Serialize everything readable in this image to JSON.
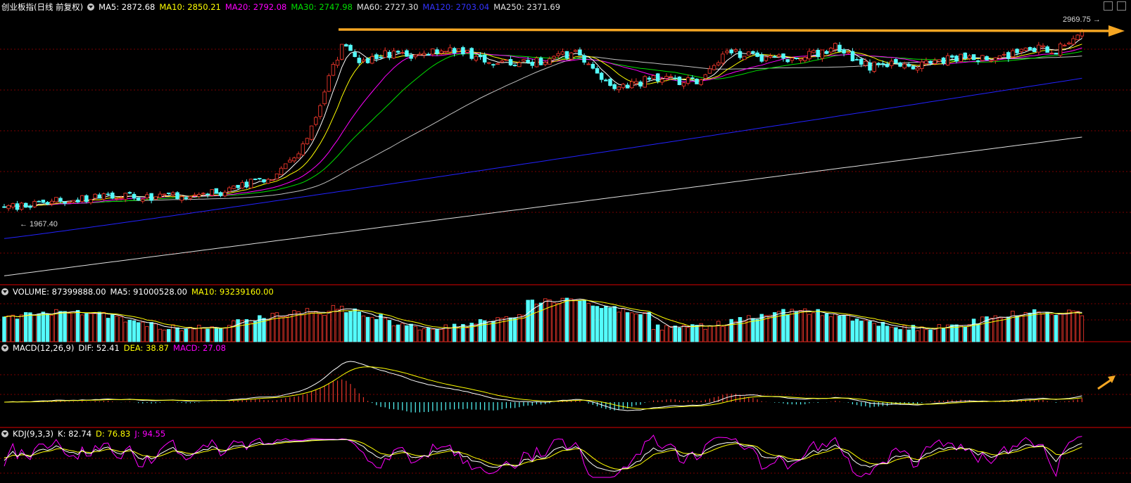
{
  "colors": {
    "up": "#e8352a",
    "down": "#54fcfc",
    "ma5": "#ffffff",
    "ma10": "#ffff00",
    "ma20": "#ff00ff",
    "ma30": "#00e000",
    "ma60": "#c0c0c0",
    "ma120": "#2222ff",
    "ma250": "#e0e0e0",
    "arrow": "#f5a623"
  },
  "main": {
    "title": "创业板指(日线 前复权)",
    "ma5": "MA5: 2872.68",
    "ma10": "MA10: 2850.21",
    "ma20": "MA20: 2792.08",
    "ma30": "MA30: 2747.98",
    "ma60": "MA60: 2727.30",
    "ma120": "MA120: 2703.04",
    "ma250": "MA250: 2371.69",
    "high_label": "2969.75",
    "low_label": "1967.40"
  },
  "volume": {
    "title": "VOLUME: 87399888.00",
    "ma5": "MA5: 91000528.00",
    "ma10": "MA10: 93239160.00"
  },
  "macd": {
    "title": "MACD(12,26,9)",
    "dif": "DIF: 52.41",
    "dea": "DEA: 38.87",
    "macd": "MACD: 27.08"
  },
  "kdj": {
    "title": "KDJ(9,3,3)",
    "k": "K: 82.74",
    "d": "D: 76.83",
    "j": "J: 94.55"
  },
  "chart_data": {
    "type": "candlestick",
    "title": "创业板指(日线 前复权)",
    "period": "daily",
    "bars": 250,
    "close_path_control_points": [
      {
        "bar": 0,
        "close": 1975
      },
      {
        "bar": 12,
        "close": 2015
      },
      {
        "bar": 25,
        "close": 2040
      },
      {
        "bar": 35,
        "close": 2030
      },
      {
        "bar": 50,
        "close": 2060
      },
      {
        "bar": 62,
        "close": 2150
      },
      {
        "bar": 70,
        "close": 2350
      },
      {
        "bar": 78,
        "close": 2900
      },
      {
        "bar": 82,
        "close": 2780
      },
      {
        "bar": 88,
        "close": 2850
      },
      {
        "bar": 95,
        "close": 2820
      },
      {
        "bar": 103,
        "close": 2880
      },
      {
        "bar": 112,
        "close": 2780
      },
      {
        "bar": 122,
        "close": 2790
      },
      {
        "bar": 132,
        "close": 2850
      },
      {
        "bar": 140,
        "close": 2640
      },
      {
        "bar": 150,
        "close": 2700
      },
      {
        "bar": 160,
        "close": 2680
      },
      {
        "bar": 168,
        "close": 2860
      },
      {
        "bar": 176,
        "close": 2800
      },
      {
        "bar": 185,
        "close": 2830
      },
      {
        "bar": 192,
        "close": 2875
      },
      {
        "bar": 200,
        "close": 2770
      },
      {
        "bar": 212,
        "close": 2780
      },
      {
        "bar": 220,
        "close": 2820
      },
      {
        "bar": 228,
        "close": 2810
      },
      {
        "bar": 236,
        "close": 2870
      },
      {
        "bar": 243,
        "close": 2860
      },
      {
        "bar": 249,
        "close": 2965
      }
    ],
    "price_high": 2969.75,
    "price_low": 1967.4,
    "last_values": {
      "MA5": 2872.68,
      "MA10": 2850.21,
      "MA20": 2792.08,
      "MA30": 2747.98,
      "MA60": 2727.3,
      "MA120": 2703.04,
      "MA250": 2371.69,
      "VOLUME": 87399888,
      "VOL_MA5": 91000528,
      "VOL_MA10": 93239160,
      "DIF": 52.41,
      "DEA": 38.87,
      "MACD": 27.08,
      "K": 82.74,
      "D": 76.83,
      "J": 94.55
    },
    "annotations": [
      "horizontal resistance arrow at ~2950",
      "upward arrow on MACD near last bar"
    ]
  }
}
